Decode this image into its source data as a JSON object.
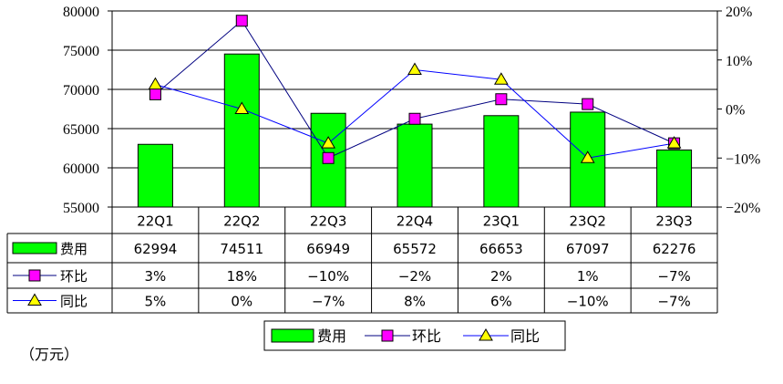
{
  "chart_data": {
    "type": "bar",
    "categories": [
      "22Q1",
      "22Q2",
      "22Q3",
      "22Q4",
      "23Q1",
      "23Q2",
      "23Q3"
    ],
    "series": [
      {
        "name": "费用",
        "kind": "bar",
        "axis": "left",
        "color": "#00ff00",
        "border": "#000000",
        "values": [
          62994,
          74511,
          66949,
          65572,
          66653,
          67097,
          62276
        ],
        "labels": [
          "62994",
          "74511",
          "66949",
          "65572",
          "66653",
          "67097",
          "62276"
        ]
      },
      {
        "name": "环比",
        "kind": "line",
        "axis": "right",
        "marker": "square",
        "color": "#ff00ff",
        "line_color": "#000080",
        "values": [
          3,
          18,
          -10,
          -2,
          2,
          1,
          -7
        ],
        "labels": [
          "3%",
          "18%",
          "−10%",
          "−2%",
          "2%",
          "1%",
          "−7%"
        ]
      },
      {
        "name": "同比",
        "kind": "line",
        "axis": "right",
        "marker": "triangle",
        "color": "#ffff00",
        "line_color": "#0000ff",
        "values": [
          5,
          0,
          -7,
          8,
          6,
          -10,
          -7
        ],
        "labels": [
          "5%",
          "0%",
          "−7%",
          "8%",
          "6%",
          "−10%",
          "−7%"
        ]
      }
    ],
    "y_left": {
      "min": 55000,
      "max": 80000,
      "step": 5000,
      "ticks": [
        "80000",
        "75000",
        "70000",
        "65000",
        "60000",
        "55000"
      ]
    },
    "y_right": {
      "min": -20,
      "max": 20,
      "step": 10,
      "ticks": [
        "20%",
        "10%",
        "0%",
        "−10%",
        "−20%"
      ]
    },
    "grid": true,
    "legend": [
      "费用",
      "环比",
      "同比"
    ],
    "legend_position": "bottom",
    "unit_note": "（万元）"
  }
}
